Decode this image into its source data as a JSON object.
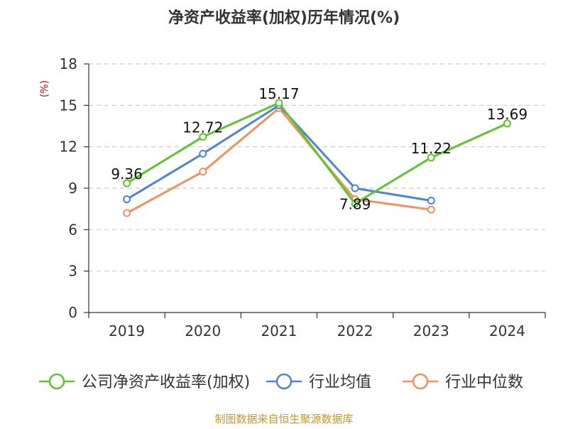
{
  "chart_data": {
    "type": "line",
    "title": "净资产收益率(加权)历年情况(%)",
    "ylabel": "(%)",
    "xlabel": "",
    "categories": [
      "2019",
      "2020",
      "2021",
      "2022",
      "2023",
      "2024"
    ],
    "yticks": [
      0,
      3,
      6,
      9,
      12,
      15,
      18
    ],
    "ylim": [
      0,
      18
    ],
    "grid": true,
    "legend_position": "bottom",
    "series": [
      {
        "name": "公司净资产收益率(加权)",
        "color": "#5ec62c",
        "values": [
          9.36,
          12.72,
          15.17,
          7.89,
          11.22,
          13.69
        ],
        "labels": [
          "9.36",
          "12.72",
          "15.17",
          "7.89",
          "11.22",
          "13.69"
        ]
      },
      {
        "name": "行业均值",
        "color": "#4f82d9",
        "values": [
          8.2,
          11.5,
          15.0,
          9.0,
          8.1,
          null
        ]
      },
      {
        "name": "行业中位数",
        "color": "#f5905e",
        "values": [
          7.2,
          10.2,
          14.8,
          8.2,
          7.45,
          null
        ]
      }
    ],
    "source": "制图数据来自恒生聚源数据库",
    "source_color": "#c8962a",
    "ylabel_color": "#d0021b"
  }
}
